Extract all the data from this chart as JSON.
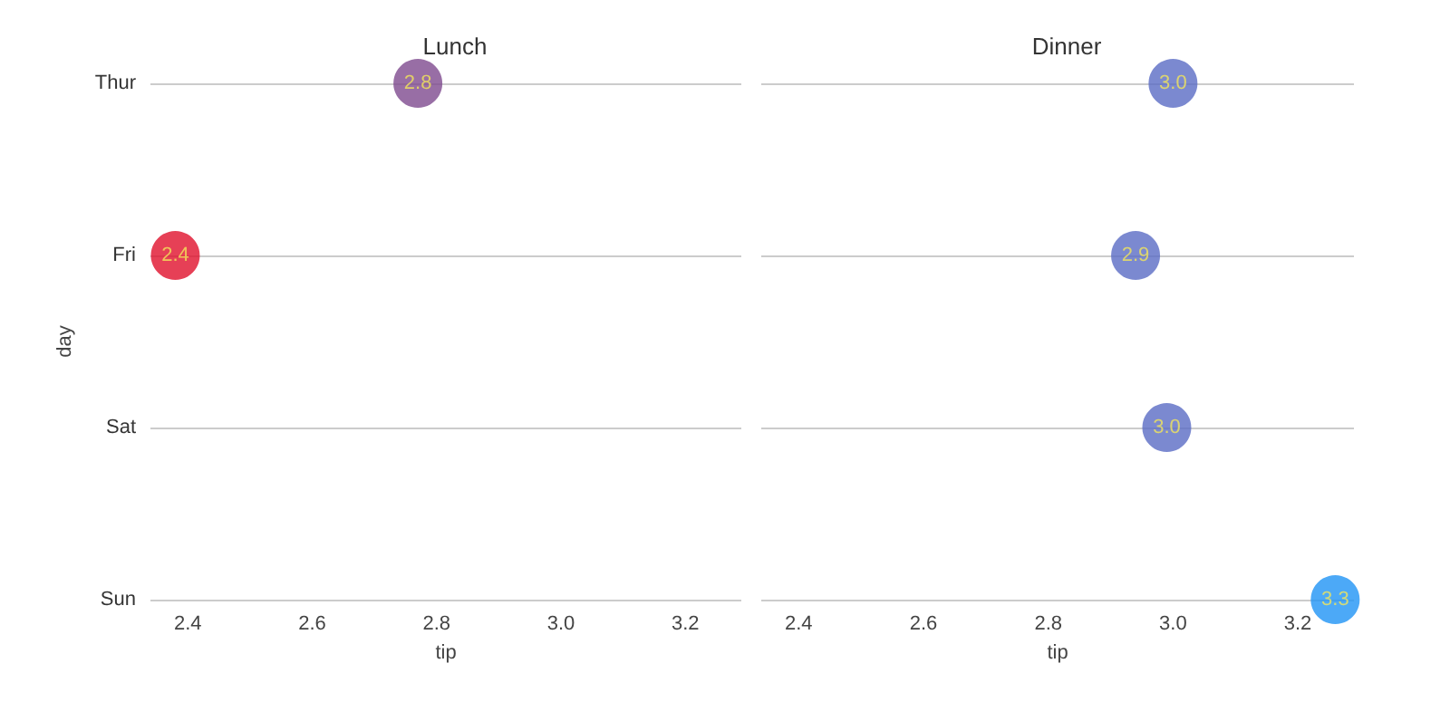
{
  "chart_data": [
    {
      "type": "scatter",
      "title": "Lunch",
      "xlabel": "tip",
      "ylabel": "day",
      "orientation": "horizontal",
      "categories": [
        "Thur",
        "Fri",
        "Sat",
        "Sun"
      ],
      "values": [
        2.77,
        2.38,
        null,
        null
      ],
      "colors": [
        "#7e4a8e",
        "#e0102c",
        null,
        null
      ],
      "value_labels": [
        "2.8",
        "2.4",
        null,
        null
      ],
      "xlim": [
        2.34,
        3.29
      ],
      "xticks": [
        2.4,
        2.6,
        2.8,
        {
          "value": 3,
          "label": "3.0"
        },
        3.2
      ],
      "grid": "y",
      "marker": "circle"
    },
    {
      "type": "scatter",
      "title": "Dinner",
      "xlabel": "tip",
      "orientation": "horizontal",
      "categories": [
        null,
        null,
        null,
        null
      ],
      "values": [
        3.0,
        2.94,
        2.99,
        3.26
      ],
      "colors": [
        "#5a6bc4",
        "#5a6bc4",
        "#5a6bc4",
        "#1f93f5"
      ],
      "value_labels": [
        "3.0",
        "2.9",
        "3.0",
        "3.3"
      ],
      "xlim": [
        2.34,
        3.29
      ],
      "xticks": [
        2.4,
        2.6,
        2.8,
        {
          "value": 3,
          "label": "3.0"
        },
        3.2
      ],
      "grid": "y",
      "marker": "circle",
      "tick_labels": "x"
    }
  ]
}
